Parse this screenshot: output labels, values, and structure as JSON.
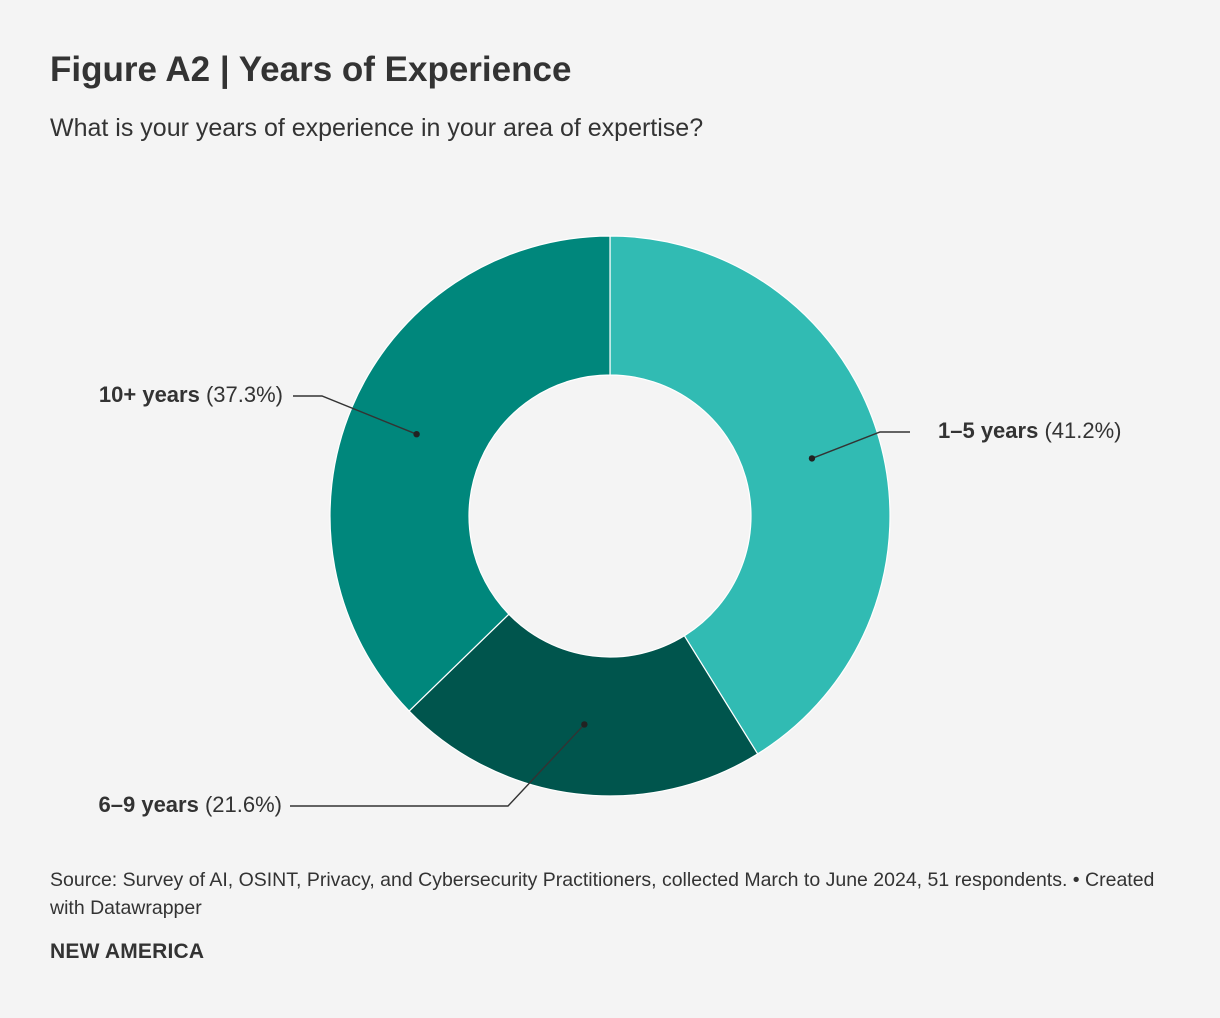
{
  "header": {
    "title": "Figure A2 | Years of Experience",
    "subtitle": "What is your years of experience in your area of expertise?"
  },
  "footer": {
    "source": "Source: Survey of AI, OSINT, Privacy, and Cybersecurity Practitioners, collected March to June 2024, 51 respondents. • Created with Datawrapper",
    "brand": "NEW AMERICA"
  },
  "chart_data": {
    "type": "pie",
    "variant": "donut",
    "title": "Figure A2 | Years of Experience",
    "subtitle": "What is your years of experience in your area of expertise?",
    "slices": [
      {
        "label": "1–5 years",
        "value": 41.2,
        "value_label": "(41.2%)",
        "color": "#31bbb3"
      },
      {
        "label": "6–9 years",
        "value": 21.6,
        "value_label": "(21.6%)",
        "color": "#00554d"
      },
      {
        "label": "10+ years",
        "value": 37.3,
        "value_label": "(37.3%)",
        "color": "#00877c"
      }
    ],
    "start": "12 o'clock",
    "direction": "clockwise"
  }
}
